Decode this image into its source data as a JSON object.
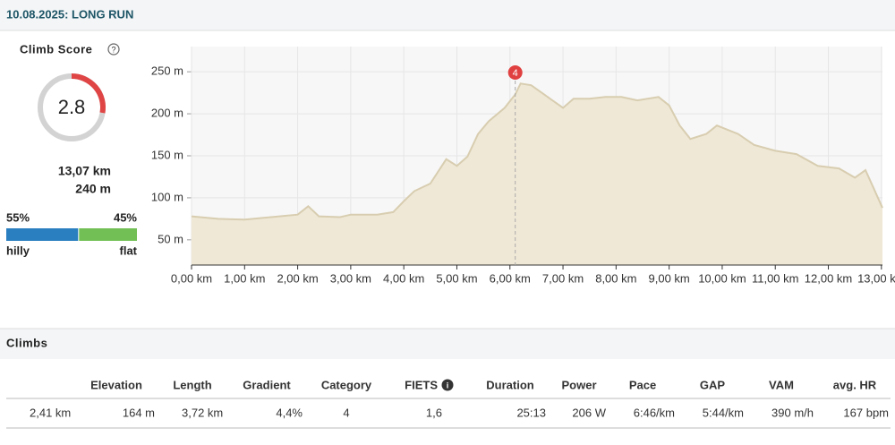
{
  "header": {
    "title": "10.08.2025: LONG RUN"
  },
  "climb_score": {
    "label": "Climb Score",
    "score": "2.8",
    "distance": "13,07 km",
    "ascent": "240 m",
    "split": {
      "values": [
        55,
        45
      ],
      "value_labels": [
        "55%",
        "45%"
      ],
      "labels": [
        "hilly",
        "flat"
      ],
      "colors": [
        "#2a7fc0",
        "#72bf55"
      ]
    }
  },
  "chart_data": {
    "type": "area",
    "x": [
      0,
      0.5,
      1.0,
      1.5,
      2.0,
      2.2,
      2.4,
      2.8,
      3.0,
      3.5,
      3.8,
      4.0,
      4.2,
      4.5,
      4.8,
      5.0,
      5.2,
      5.4,
      5.6,
      5.9,
      6.1,
      6.2,
      6.4,
      6.6,
      6.8,
      7.0,
      7.2,
      7.5,
      7.8,
      8.1,
      8.4,
      8.8,
      9.0,
      9.2,
      9.4,
      9.7,
      9.9,
      10.3,
      10.6,
      11.0,
      11.4,
      11.8,
      12.2,
      12.5,
      12.7,
      12.85,
      13.02
    ],
    "values": [
      78,
      75,
      74,
      77,
      80,
      90,
      78,
      77,
      80,
      80,
      83,
      96,
      108,
      117,
      146,
      138,
      149,
      176,
      191,
      207,
      223,
      236,
      234,
      225,
      216,
      207,
      218,
      218,
      220,
      220,
      216,
      220,
      210,
      186,
      170,
      176,
      186,
      176,
      163,
      156,
      152,
      138,
      135,
      124,
      133,
      112,
      88
    ],
    "color": "#efe8d6",
    "line_color": "#d8cdb0",
    "xlim": [
      0,
      13.02
    ],
    "ylim": [
      20,
      280
    ],
    "xticks": [
      {
        "value": 0,
        "label": "0,00 km"
      },
      {
        "value": 1,
        "label": "1,00 km"
      },
      {
        "value": 2,
        "label": "2,00 km"
      },
      {
        "value": 3,
        "label": "3,00 km"
      },
      {
        "value": 4,
        "label": "4,00 km"
      },
      {
        "value": 5,
        "label": "5,00 km"
      },
      {
        "value": 6,
        "label": "6,00 km"
      },
      {
        "value": 7,
        "label": "7,00 km"
      },
      {
        "value": 8,
        "label": "8,00 km"
      },
      {
        "value": 9,
        "label": "9,00 km"
      },
      {
        "value": 10,
        "label": "10,00 km"
      },
      {
        "value": 11,
        "label": "11,00 km"
      },
      {
        "value": 12,
        "label": "12,00 km"
      },
      {
        "value": 13,
        "label": "13,00 km"
      }
    ],
    "yticks": [
      {
        "value": 50,
        "label": "50 m"
      },
      {
        "value": 100,
        "label": "100 m"
      },
      {
        "value": 150,
        "label": "150 m"
      },
      {
        "value": 200,
        "label": "200 m"
      },
      {
        "value": 250,
        "label": "250 m"
      }
    ],
    "grid": true,
    "annotations": [
      {
        "label": "4",
        "x": 6.1
      }
    ]
  },
  "climbs": {
    "title": "Climbs",
    "headers": [
      "Elevation",
      "Length",
      "Gradient",
      "Category",
      "FIETS",
      "Duration",
      "Power",
      "Pace",
      "GAP",
      "VAM",
      "avg. HR"
    ],
    "rows": [
      [
        "2,41 km",
        "164 m",
        "3,72 km",
        "4,4%",
        "4",
        "1,6",
        "25:13",
        "206 W",
        "6:46/km",
        "5:44/km",
        "390 m/h",
        "167 bpm"
      ]
    ]
  }
}
